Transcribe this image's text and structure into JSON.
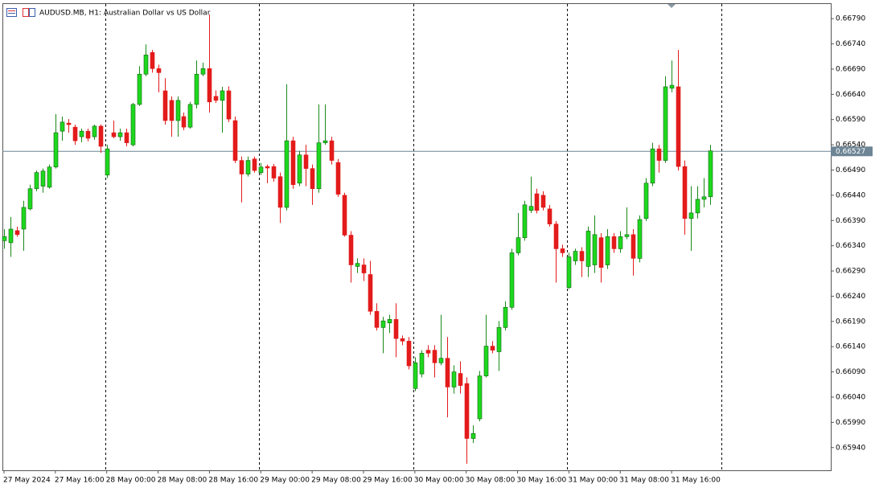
{
  "chart_data": {
    "type": "candlestick",
    "title": "AUDUSD.MB, H1:  Australian Dollar vs US Dollar",
    "x_labels": [
      "27 May 2024",
      "27 May 16:00",
      "28 May 00:00",
      "28 May 08:00",
      "28 May 16:00",
      "29 May 00:00",
      "29 May 08:00",
      "29 May 16:00",
      "30 May 00:00",
      "30 May 08:00",
      "30 May 16:00",
      "31 May 00:00",
      "31 May 08:00",
      "31 May 16:00"
    ],
    "open": [
      0.6635,
      0.66346,
      0.6637,
      0.66373,
      0.66413,
      0.66453,
      0.66458,
      0.66456,
      0.66496,
      0.66567,
      0.66583,
      0.66575,
      0.66556,
      0.66567,
      0.66556,
      0.66577,
      0.6648,
      0.66564,
      0.66556,
      0.66564,
      0.6654,
      0.6662,
      0.6668,
      0.66723,
      0.66691,
      0.66647,
      0.66628,
      0.66588,
      0.66596,
      0.66575,
      0.6662,
      0.6668,
      0.66691,
      0.66636,
      0.66628,
      0.66647,
      0.66588,
      0.66509,
      0.66482,
      0.66512,
      0.66485,
      0.66497,
      0.66497,
      0.66477,
      0.66416,
      0.66548,
      0.66464,
      0.6652,
      0.66493,
      0.66453,
      0.66544,
      0.66548,
      0.66505,
      0.6644,
      0.66361,
      0.66299,
      0.66302,
      0.66283,
      0.6621,
      0.66178,
      0.66187,
      0.66194,
      0.66156,
      0.66151,
      0.66057,
      0.66086,
      0.66133,
      0.66133,
      0.66108,
      0.66117,
      0.6606,
      0.66087,
      0.66067,
      0.65958,
      0.65997,
      0.66082,
      0.66141,
      0.6613,
      0.66178,
      0.66218,
      0.66326,
      0.66356,
      0.6641,
      0.66443,
      0.6644,
      0.66413,
      0.66383,
      0.66334,
      0.66257,
      0.6631,
      0.66329,
      0.66299,
      0.66302,
      0.66356,
      0.66302,
      0.66358,
      0.66334,
      0.66358,
      0.66362,
      0.66315,
      0.66394,
      0.66464,
      0.66532,
      0.66509,
      0.66652,
      0.66655,
      0.66497,
      0.66394,
      0.66405,
      0.66432,
      0.66437
    ],
    "high": [
      0.66373,
      0.66397,
      0.66378,
      0.66429,
      0.66461,
      0.66489,
      0.66493,
      0.66501,
      0.66601,
      0.66596,
      0.66591,
      0.6658,
      0.66572,
      0.66572,
      0.6658,
      0.6658,
      0.6654,
      0.66588,
      0.66572,
      0.66572,
      0.66623,
      0.66696,
      0.66739,
      0.66728,
      0.66699,
      0.66672,
      0.66636,
      0.66636,
      0.66604,
      0.66625,
      0.66707,
      0.66703,
      0.66798,
      0.66648,
      0.66655,
      0.66656,
      0.66596,
      0.66517,
      0.66517,
      0.66517,
      0.66504,
      0.66501,
      0.66502,
      0.66485,
      0.6666,
      0.66556,
      0.66528,
      0.6654,
      0.66501,
      0.6662,
      0.6662,
      0.66556,
      0.66512,
      0.66445,
      0.66369,
      0.66315,
      0.66315,
      0.6631,
      0.66226,
      0.66199,
      0.66203,
      0.66226,
      0.66162,
      0.66159,
      0.66119,
      0.66133,
      0.66143,
      0.66143,
      0.66203,
      0.66159,
      0.66103,
      0.66111,
      0.66079,
      0.65984,
      0.66092,
      0.66203,
      0.66151,
      0.66191,
      0.6623,
      0.66334,
      0.66405,
      0.66429,
      0.66477,
      0.66453,
      0.66448,
      0.66421,
      0.66389,
      0.66342,
      0.66326,
      0.66334,
      0.66337,
      0.66378,
      0.664,
      0.66365,
      0.66373,
      0.66365,
      0.66369,
      0.66416,
      0.66373,
      0.664,
      0.66474,
      0.66544,
      0.6654,
      0.66676,
      0.66707,
      0.66728,
      0.66509,
      0.66458,
      0.66458,
      0.66474,
      0.6654
    ],
    "low": [
      0.66334,
      0.66318,
      0.66358,
      0.6633,
      0.6641,
      0.66448,
      0.66445,
      0.66453,
      0.66493,
      0.66548,
      0.66564,
      0.6654,
      0.66545,
      0.66547,
      0.6655,
      0.66524,
      0.66474,
      0.66553,
      0.66548,
      0.66537,
      0.66537,
      0.66617,
      0.66676,
      0.66683,
      0.66644,
      0.6658,
      0.66556,
      0.66556,
      0.66569,
      0.66572,
      0.66612,
      0.66676,
      0.66604,
      0.66623,
      0.66564,
      0.66585,
      0.66504,
      0.66426,
      0.66477,
      0.66485,
      0.6648,
      0.66464,
      0.66467,
      0.66385,
      0.6641,
      0.66453,
      0.66458,
      0.66458,
      0.66421,
      0.66445,
      0.6654,
      0.66501,
      0.66437,
      0.66358,
      0.66267,
      0.66286,
      0.6627,
      0.66203,
      0.66172,
      0.66127,
      0.66167,
      0.66119,
      0.66143,
      0.66095,
      0.66052,
      0.66079,
      0.66119,
      0.66079,
      0.66103,
      0.66,
      0.66047,
      0.66047,
      0.65908,
      0.65949,
      0.65992,
      0.66079,
      0.66127,
      0.66092,
      0.66172,
      0.66213,
      0.66321,
      0.6635,
      0.66405,
      0.66404,
      0.6641,
      0.66378,
      0.66267,
      0.66318,
      0.66254,
      0.66302,
      0.66278,
      0.66278,
      0.66286,
      0.66267,
      0.66294,
      0.66326,
      0.66326,
      0.66353,
      0.66281,
      0.66307,
      0.66389,
      0.66458,
      0.66485,
      0.66504,
      0.66644,
      0.66489,
      0.66362,
      0.6633,
      0.66394,
      0.66416,
      0.66421
    ],
    "close": [
      0.66358,
      0.66373,
      0.66362,
      0.66416,
      0.66453,
      0.66485,
      0.66488,
      0.66496,
      0.66564,
      0.66585,
      0.6658,
      0.66548,
      0.66567,
      0.66553,
      0.66577,
      0.66537,
      0.66532,
      0.66556,
      0.66564,
      0.66544,
      0.6662,
      0.6668,
      0.66718,
      0.66691,
      0.66683,
      0.66588,
      0.66588,
      0.66628,
      0.66575,
      0.6662,
      0.6668,
      0.66691,
      0.66625,
      0.66628,
      0.66647,
      0.66591,
      0.66509,
      0.66482,
      0.66509,
      0.66489,
      0.66496,
      0.66494,
      0.66474,
      0.66416,
      0.66548,
      0.66461,
      0.6652,
      0.66493,
      0.66453,
      0.66544,
      0.66548,
      0.66509,
      0.66442,
      0.66361,
      0.66302,
      0.66305,
      0.66286,
      0.6621,
      0.66178,
      0.66191,
      0.66194,
      0.66156,
      0.66151,
      0.66102,
      0.66108,
      0.66127,
      0.66127,
      0.66108,
      0.66117,
      0.6606,
      0.6609,
      0.66063,
      0.65958,
      0.65968,
      0.66082,
      0.66141,
      0.66133,
      0.66178,
      0.66218,
      0.66326,
      0.66356,
      0.66421,
      0.66418,
      0.6641,
      0.66416,
      0.66383,
      0.66334,
      0.66326,
      0.66318,
      0.66329,
      0.6631,
      0.66369,
      0.66362,
      0.66297,
      0.66358,
      0.66334,
      0.66358,
      0.66362,
      0.66315,
      0.66392,
      0.66464,
      0.66532,
      0.66509,
      0.66655,
      0.66658,
      0.66497,
      0.66394,
      0.66405,
      0.66432,
      0.66437,
      0.66528
    ],
    "current_price": 0.66527,
    "ylim": [
      0.65895,
      0.66819
    ],
    "yticks": [
      {
        "value": 0.6679,
        "label": "0.66790"
      },
      {
        "value": 0.6674,
        "label": "0.66740"
      },
      {
        "value": 0.6669,
        "label": "0.66690"
      },
      {
        "value": 0.6664,
        "label": "0.66640"
      },
      {
        "value": 0.6659,
        "label": "0.66590"
      },
      {
        "value": 0.6654,
        "label": "0.66540"
      },
      {
        "value": 0.6649,
        "label": "0.66490"
      },
      {
        "value": 0.6644,
        "label": "0.66440"
      },
      {
        "value": 0.6639,
        "label": "0.66390"
      },
      {
        "value": 0.6634,
        "label": "0.66340"
      },
      {
        "value": 0.6629,
        "label": "0.66290"
      },
      {
        "value": 0.6624,
        "label": "0.66240"
      },
      {
        "value": 0.6619,
        "label": "0.66190"
      },
      {
        "value": 0.6614,
        "label": "0.66140"
      },
      {
        "value": 0.6609,
        "label": "0.66090"
      },
      {
        "value": 0.6604,
        "label": "0.66040"
      },
      {
        "value": 0.6599,
        "label": "0.65990"
      },
      {
        "value": 0.6594,
        "label": "0.65940"
      }
    ],
    "up_color": "#1ed81e",
    "down_color": "#e31b1b",
    "price_line_color": "#6d8595"
  }
}
